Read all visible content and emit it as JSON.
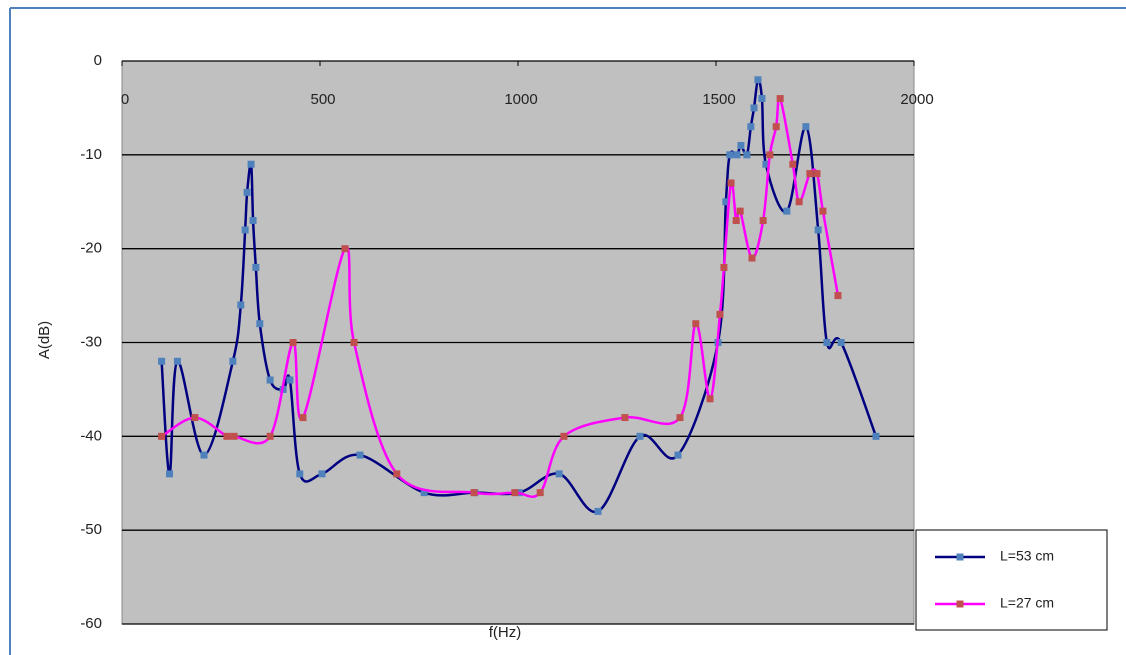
{
  "chart_data": {
    "type": "line",
    "x_label": "f(Hz)",
    "y_label": "A(dB)",
    "xlim": [
      0,
      2000
    ],
    "xticks": [
      0,
      500,
      1000,
      1500,
      2000
    ],
    "ylim": [
      -60,
      0
    ],
    "yticks": [
      0,
      -10,
      -20,
      -30,
      -40,
      -50,
      -60
    ],
    "grid": true,
    "legend": "lower right",
    "series": [
      {
        "name": "L=53 cm",
        "color": "#000080",
        "marker_color": "#4f81bd",
        "x": [
          100,
          120,
          140,
          207,
          280,
          300,
          311,
          316,
          326,
          331,
          338,
          348,
          374,
          407,
          424,
          449,
          505,
          601,
          763,
          891,
          1003,
          1104,
          1202,
          1308,
          1404,
          1505,
          1525,
          1535,
          1553,
          1563,
          1578,
          1588,
          1596,
          1606,
          1616,
          1626,
          1679,
          1727,
          1758,
          1780,
          1816,
          1904
        ],
        "values": [
          -32,
          -44,
          -32,
          -42,
          -32,
          -26,
          -18,
          -14,
          -11,
          -17,
          -22,
          -28,
          -34,
          -35,
          -34,
          -44,
          -44,
          -42,
          -46,
          -46,
          -46,
          -44,
          -48,
          -40,
          -42,
          -30,
          -15,
          -10,
          -10,
          -9,
          -10,
          -7,
          -5,
          -2,
          -4,
          -11,
          -16,
          -7,
          -18,
          -30,
          -30,
          -40
        ]
      },
      {
        "name": "L=27 cm",
        "color": "#ff00ff",
        "marker_color": "#c0504d",
        "x": [
          100,
          184,
          265,
          283,
          374,
          432,
          457,
          563,
          586,
          694,
          889,
          992,
          1056,
          1116,
          1270,
          1409,
          1449,
          1485,
          1510,
          1520,
          1538,
          1551,
          1561,
          1591,
          1619,
          1636,
          1652,
          1662,
          1694,
          1710,
          1737,
          1755,
          1770,
          1808
        ],
        "values": [
          -40,
          -38,
          -40,
          -40,
          -40,
          -30,
          -38,
          -20,
          -30,
          -44,
          -46,
          -46,
          -46,
          -40,
          -38,
          -38,
          -28,
          -36,
          -27,
          -22,
          -13,
          -17,
          -16,
          -21,
          -17,
          -10,
          -7,
          -4,
          -11,
          -15,
          -12,
          -12,
          -16,
          -25
        ]
      }
    ]
  }
}
